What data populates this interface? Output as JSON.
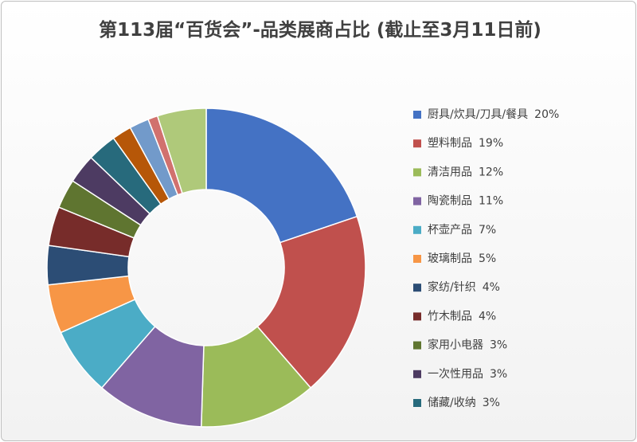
{
  "chart_data": {
    "type": "donut",
    "title": "第113届“百货会”-品类展商占比 (截止至3月11日前)",
    "categories": [
      "厨具/炊具/刀具/餐具",
      "塑料制品",
      "清洁用品",
      "陶瓷制品",
      "杯壶产品",
      "玻璃制品",
      "家纺/针织",
      "竹木制品",
      "家用小电器",
      "一次性用品",
      "储藏/收纳",
      null,
      null,
      null,
      null
    ],
    "values": [
      20,
      19,
      12,
      11,
      7,
      5,
      4,
      4,
      3,
      3,
      3,
      2,
      2,
      1,
      5
    ],
    "value_labels": [
      "20%",
      "19%",
      "12%",
      "11%",
      "7%",
      "5%",
      "4%",
      "4%",
      "3%",
      "3%",
      "3%",
      null,
      null,
      null,
      null
    ],
    "colors": [
      "#4472c4",
      "#c0504d",
      "#9bbb59",
      "#8064a2",
      "#4bacc6",
      "#f79646",
      "#2c4d75",
      "#772c2a",
      "#5f7530",
      "#4d3b62",
      "#276a7c",
      "#b65708",
      "#729aca",
      "#d1716e",
      "#afc97a"
    ],
    "legend": "right"
  }
}
